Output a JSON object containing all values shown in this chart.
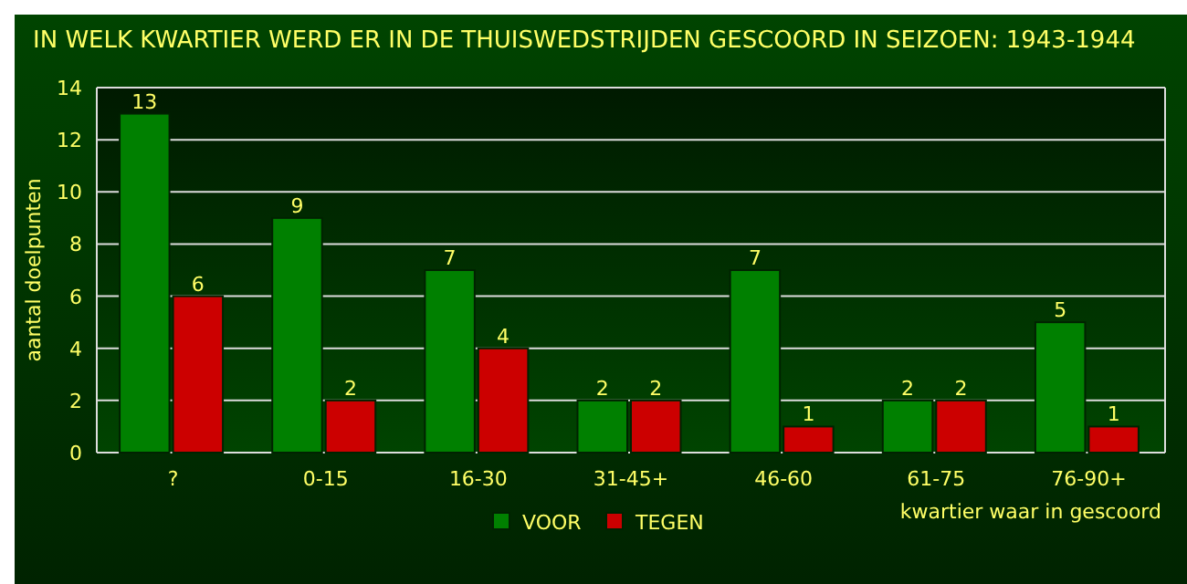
{
  "chart_data": {
    "type": "bar",
    "title": "IN WELK KWARTIER WERD ER IN DE THUISWEDSTRIJDEN GESCOORD IN SEIZOEN: 1943-1944",
    "xlabel": "kwartier waar in gescoord",
    "ylabel": "aantal doelpunten",
    "categories": [
      "?",
      "0-15",
      "16-30",
      "31-45+",
      "46-60",
      "61-75",
      "76-90+"
    ],
    "series": [
      {
        "name": "VOOR",
        "color": "#008000",
        "values": [
          13,
          9,
          7,
          2,
          7,
          2,
          5
        ]
      },
      {
        "name": "TEGEN",
        "color": "#cc0000",
        "values": [
          6,
          2,
          4,
          2,
          1,
          2,
          1
        ]
      }
    ],
    "ylim": [
      0,
      14
    ],
    "yticks": [
      0,
      2,
      4,
      6,
      8,
      10,
      12,
      14
    ],
    "grid": "y",
    "legend": "bottom",
    "data_labels": true
  }
}
